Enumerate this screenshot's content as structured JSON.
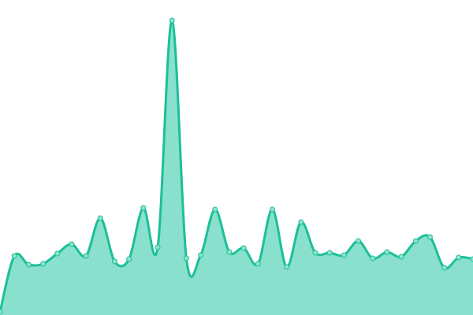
{
  "chart_data": {
    "type": "area",
    "title": "",
    "xlabel": "",
    "ylabel": "",
    "axes_visible": false,
    "grid": false,
    "curve": "smooth",
    "ylim": [
      0,
      380
    ],
    "x": [
      0,
      1,
      2,
      3,
      4,
      5,
      6,
      7,
      8,
      9,
      10,
      11,
      12,
      13,
      14,
      15,
      16,
      17,
      18,
      19,
      20,
      21,
      22,
      23,
      24,
      25,
      26,
      27,
      28,
      29,
      30,
      31,
      32,
      33
    ],
    "values": [
      4,
      75,
      64,
      65,
      78,
      90,
      75,
      123,
      68,
      71,
      136,
      86,
      374,
      72,
      76,
      134,
      80,
      85,
      65,
      134,
      61,
      118,
      79,
      79,
      76,
      94,
      72,
      80,
      74,
      94,
      99,
      60,
      73,
      71
    ],
    "colors": {
      "line": "#1dbf98",
      "fill": "#88e0cd",
      "marker": "#8fe3cf"
    }
  }
}
